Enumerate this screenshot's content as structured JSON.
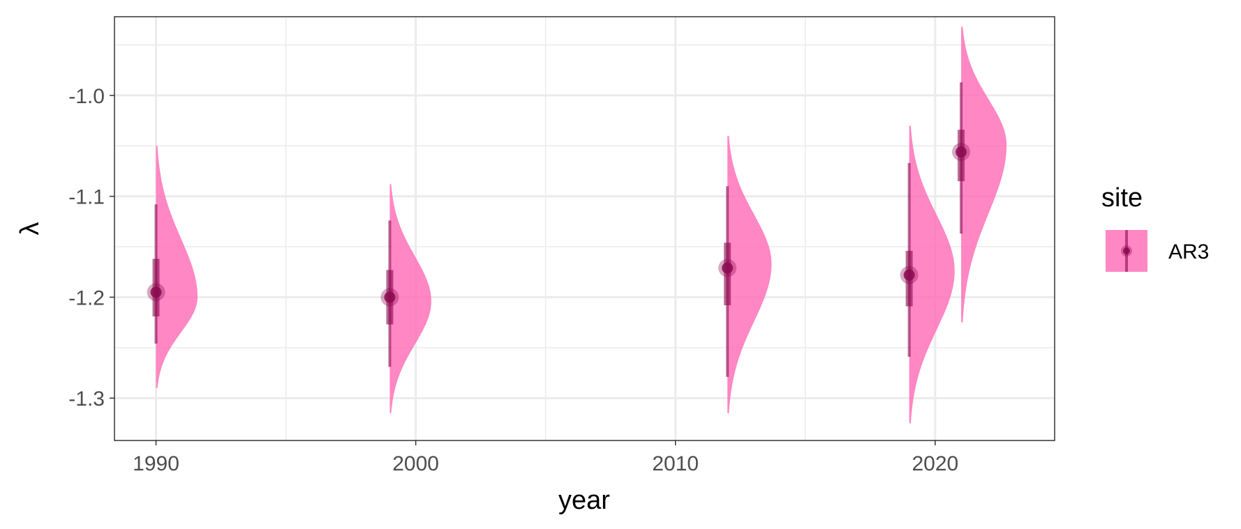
{
  "chart_data": {
    "type": "halfeye",
    "xlabel": "year",
    "ylabel": "λ",
    "xlim": [
      1988.4,
      2024.6
    ],
    "ylim": [
      -1.342,
      -0.922
    ],
    "x_ticks": [
      1990,
      2000,
      2010,
      2020
    ],
    "x_tick_labels": [
      "1990",
      "2000",
      "2010",
      "2020"
    ],
    "x_minor_ticks": [
      1995,
      2005,
      2015
    ],
    "y_ticks": [
      -1.3,
      -1.2,
      -1.1,
      -1.0
    ],
    "y_tick_labels": [
      "-1.3",
      "-1.2",
      "-1.1",
      "-1.0"
    ],
    "y_minor_ticks": [
      -1.35,
      -1.25,
      -1.15,
      -1.05,
      -0.95
    ],
    "grid": true,
    "legend": {
      "title": "site",
      "position": "right",
      "entries": [
        {
          "label": "AR3",
          "color": "#ff69b4"
        }
      ]
    },
    "series": [
      {
        "name": "AR3",
        "fill_color": "#ff69b4",
        "point_color": "#8b0a50",
        "points": [
          {
            "x": 1990,
            "median": -1.195,
            "inner": [
              -1.219,
              -1.162
            ],
            "outer": [
              -1.246,
              -1.108
            ],
            "density_range": [
              -1.29,
              -1.05
            ],
            "mode": -1.2,
            "peak_width": 1.6
          },
          {
            "x": 1999,
            "median": -1.2,
            "inner": [
              -1.227,
              -1.173
            ],
            "outer": [
              -1.269,
              -1.124
            ],
            "density_range": [
              -1.315,
              -1.088
            ],
            "mode": -1.204,
            "peak_width": 1.6
          },
          {
            "x": 2012,
            "median": -1.171,
            "inner": [
              -1.208,
              -1.146
            ],
            "outer": [
              -1.279,
              -1.09
            ],
            "density_range": [
              -1.315,
              -1.04
            ],
            "mode": -1.167,
            "peak_width": 1.7
          },
          {
            "x": 2019,
            "median": -1.178,
            "inner": [
              -1.209,
              -1.154
            ],
            "outer": [
              -1.259,
              -1.067
            ],
            "density_range": [
              -1.325,
              -1.03
            ],
            "mode": -1.174,
            "peak_width": 1.75
          },
          {
            "x": 2021,
            "median": -1.056,
            "inner": [
              -1.085,
              -1.034
            ],
            "outer": [
              -1.137,
              -0.987
            ],
            "density_range": [
              -1.225,
              -0.932
            ],
            "mode": -1.049,
            "peak_width": 1.75
          }
        ]
      }
    ]
  }
}
